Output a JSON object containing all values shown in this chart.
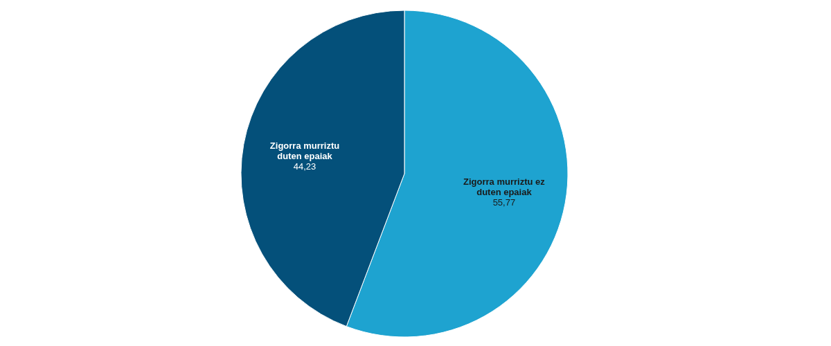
{
  "chart_data": {
    "type": "pie",
    "categories": [
      "Zigorra murriztu ez duten epaiak",
      "Zigorra murriztu duten epaiak"
    ],
    "values": [
      55.77,
      44.23
    ],
    "colors": [
      "#1ea3d0",
      "#04507a"
    ],
    "value_labels": [
      "55,77",
      "44,23"
    ]
  }
}
